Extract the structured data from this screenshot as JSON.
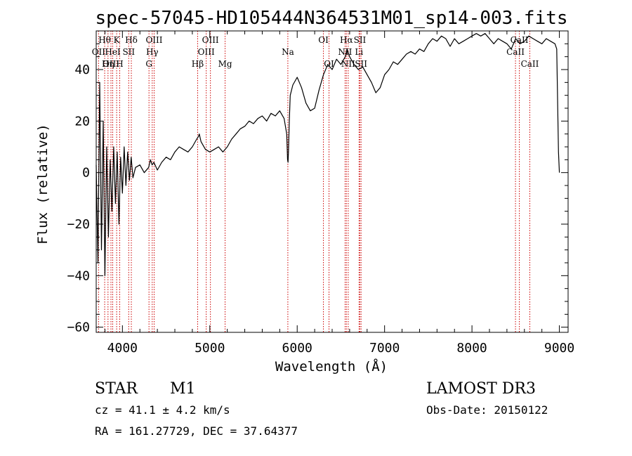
{
  "chart_data": {
    "type": "line",
    "title": "spec-57045-HD105444N364531M01_sp14-003.fits",
    "xlabel": "Wavelength (Å)",
    "ylabel": "Flux (relative)",
    "xlim": [
      3700,
      9100
    ],
    "ylim": [
      -62,
      55
    ],
    "xticks": [
      4000,
      5000,
      6000,
      7000,
      8000,
      9000
    ],
    "yticks": [
      -60,
      -40,
      -20,
      0,
      20,
      40
    ],
    "x_minor_step": 200,
    "y_minor_step": 5,
    "series": [
      {
        "name": "flux",
        "x": [
          3700,
          3720,
          3740,
          3760,
          3780,
          3800,
          3820,
          3840,
          3860,
          3880,
          3900,
          3920,
          3940,
          3960,
          3980,
          4000,
          4020,
          4040,
          4060,
          4080,
          4100,
          4120,
          4150,
          4200,
          4250,
          4300,
          4320,
          4340,
          4360,
          4400,
          4450,
          4500,
          4550,
          4600,
          4650,
          4700,
          4750,
          4800,
          4850,
          4870,
          4880,
          4900,
          4950,
          5000,
          5050,
          5100,
          5150,
          5200,
          5250,
          5300,
          5350,
          5400,
          5450,
          5500,
          5550,
          5600,
          5650,
          5700,
          5750,
          5800,
          5850,
          5880,
          5890,
          5895,
          5900,
          5910,
          5920,
          5950,
          6000,
          6050,
          6100,
          6150,
          6200,
          6250,
          6300,
          6350,
          6400,
          6450,
          6500,
          6550,
          6570,
          6600,
          6650,
          6700,
          6750,
          6800,
          6850,
          6900,
          6950,
          7000,
          7050,
          7100,
          7150,
          7200,
          7250,
          7300,
          7350,
          7400,
          7450,
          7500,
          7550,
          7600,
          7650,
          7700,
          7750,
          7800,
          7850,
          7900,
          7950,
          8000,
          8050,
          8100,
          8150,
          8200,
          8250,
          8300,
          8350,
          8400,
          8450,
          8500,
          8550,
          8600,
          8650,
          8700,
          8750,
          8800,
          8850,
          8900,
          8950,
          8970,
          8990,
          9000
        ],
        "values": [
          3,
          -35,
          35,
          -30,
          20,
          -40,
          10,
          -25,
          5,
          -15,
          10,
          -12,
          8,
          -20,
          6,
          -8,
          10,
          -5,
          8,
          -3,
          6,
          -2,
          2,
          3,
          0,
          2,
          5,
          3,
          4,
          1,
          4,
          6,
          5,
          8,
          10,
          9,
          8,
          10,
          13,
          14,
          15,
          12,
          9,
          8,
          9,
          10,
          8,
          10,
          13,
          15,
          17,
          18,
          20,
          19,
          21,
          22,
          20,
          23,
          22,
          24,
          21,
          15,
          5,
          4,
          8,
          20,
          30,
          34,
          37,
          33,
          27,
          24,
          25,
          32,
          38,
          42,
          40,
          44,
          42,
          45,
          48,
          45,
          42,
          40,
          41,
          38,
          35,
          31,
          33,
          38,
          40,
          43,
          42,
          44,
          46,
          47,
          46,
          48,
          47,
          50,
          52,
          51,
          53,
          52,
          49,
          52,
          50,
          51,
          52,
          53,
          54,
          53,
          54,
          52,
          50,
          52,
          51,
          50,
          48,
          52,
          50,
          51,
          53,
          52,
          51,
          50,
          52,
          51,
          50,
          48,
          8,
          0
        ]
      }
    ],
    "spectral_lines": [
      {
        "label": "Hθ",
        "x": 3797,
        "row": 1
      },
      {
        "label": "OII",
        "x": 3727,
        "row": 2
      },
      {
        "label": "OIII",
        "x": 3869,
        "row": 3
      },
      {
        "label": "K",
        "x": 3934,
        "row": 1
      },
      {
        "label": "HeI",
        "x": 3889,
        "row": 2
      },
      {
        "label": "Hη",
        "x": 3835,
        "row": 3
      },
      {
        "label": "Hδ",
        "x": 4102,
        "row": 1
      },
      {
        "label": "SII",
        "x": 4072,
        "row": 2
      },
      {
        "label": "H",
        "x": 3969,
        "row": 3
      },
      {
        "label": "OIII",
        "x": 4363,
        "row": 1
      },
      {
        "label": "Hγ",
        "x": 4341,
        "row": 2
      },
      {
        "label": "G",
        "x": 4304,
        "row": 3
      },
      {
        "label": "OIII",
        "x": 5007,
        "row": 1
      },
      {
        "label": "OIII",
        "x": 4959,
        "row": 2
      },
      {
        "label": "Hβ",
        "x": 4861,
        "row": 3
      },
      {
        "label": "Mg",
        "x": 5175,
        "row": 3
      },
      {
        "label": "Na",
        "x": 5893,
        "row": 2
      },
      {
        "label": "OI",
        "x": 6300,
        "row": 1
      },
      {
        "label": "OI",
        "x": 6364,
        "row": 3
      },
      {
        "label": "Hα",
        "x": 6563,
        "row": 1
      },
      {
        "label": "NII",
        "x": 6548,
        "row": 2
      },
      {
        "label": "NII",
        "x": 6584,
        "row": 3
      },
      {
        "label": "SII",
        "x": 6717,
        "row": 1
      },
      {
        "label": "Li",
        "x": 6708,
        "row": 2
      },
      {
        "label": "SII",
        "x": 6731,
        "row": 3
      },
      {
        "label": "CaII",
        "x": 8542,
        "row": 1
      },
      {
        "label": "CaII",
        "x": 8498,
        "row": 2
      },
      {
        "label": "CaII",
        "x": 8662,
        "row": 3
      }
    ]
  },
  "info": {
    "object_class": "STAR",
    "subclass": "M1",
    "cz": "cz = 41.1 ± 4.2 km/s",
    "coords": "RA = 161.27729, DEC =  37.64377",
    "survey": "LAMOST DR3",
    "obs_date": "Obs-Date: 20150122"
  },
  "colors": {
    "line": "#000000",
    "marker_line": "#cc0000",
    "background": "#ffffff"
  }
}
